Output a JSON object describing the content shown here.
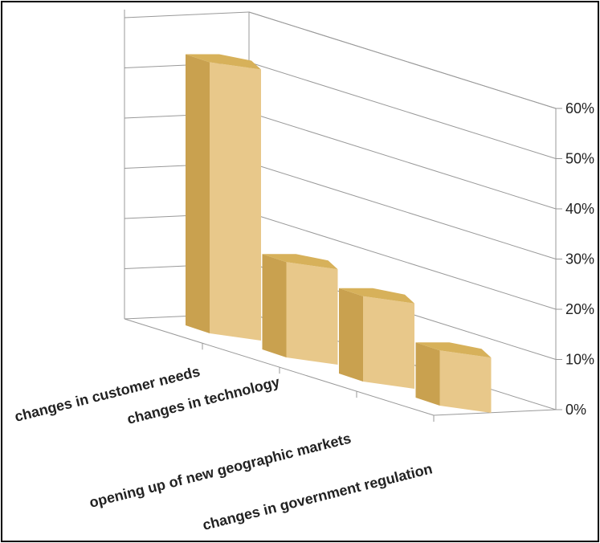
{
  "chart_data": {
    "type": "bar",
    "categories": [
      "changes in customer needs",
      "changes in technology",
      "opening up of new geographic markets",
      "changes in government regulation"
    ],
    "values": [
      54,
      19,
      17,
      11
    ],
    "y_ticks": [
      "0%",
      "10%",
      "20%",
      "30%",
      "40%",
      "50%",
      "60%"
    ],
    "ylim": [
      0,
      60
    ],
    "grid": true,
    "three_d": true,
    "colors": {
      "front": "#e8c88a",
      "side": "#c9a14f",
      "top": "#d7b15a",
      "grid": "#999999",
      "text": "#222222"
    }
  }
}
